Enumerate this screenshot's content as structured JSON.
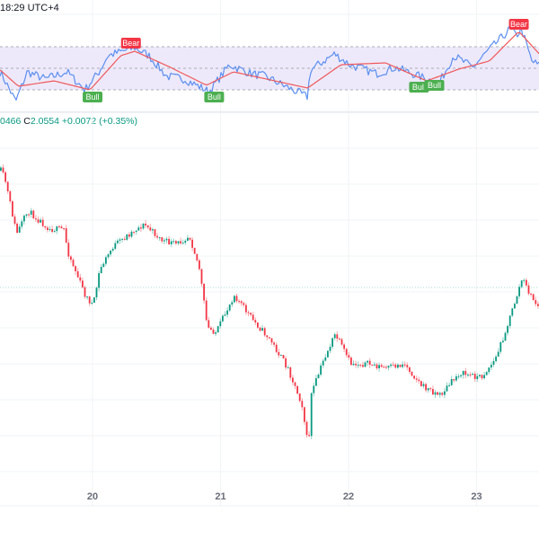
{
  "header": {
    "time_label": "18:29 UTC+4"
  },
  "legend": {
    "low_fragment": "0466",
    "close_prefix": "C",
    "close_value": "2.0554",
    "change": "+0.0072",
    "change_pct": "(+0.35%)"
  },
  "colors": {
    "up": "#089981",
    "down": "#f23645",
    "rsi": "#5b8ff0",
    "rsi_ma": "#f0585a",
    "band": "#ede9fa",
    "bull": "#4caf50",
    "bear": "#f23645"
  },
  "chart_data": [
    {
      "type": "line",
      "panel": "oscillator",
      "band": [
        30,
        70
      ],
      "middle": 50,
      "series": [
        {
          "role": "oscillator",
          "x": [
            19.28,
            19.4,
            19.49,
            19.63,
            19.8,
            19.94,
            20.05,
            20.12,
            20.33,
            20.44,
            20.58,
            20.72,
            20.91,
            21.07,
            21.24,
            21.35,
            21.49,
            21.68,
            21.7,
            21.89,
            22.01,
            22.22,
            22.36,
            22.5,
            22.61,
            22.71,
            22.82,
            22.97,
            23.08,
            23.21,
            23.26,
            23.31,
            23.35,
            23.43,
            23.49
          ],
          "y": [
            46.7,
            19.2,
            46.7,
            40,
            46.7,
            30,
            46.7,
            61.7,
            69.2,
            61.7,
            42.5,
            40,
            28.3,
            53.3,
            45,
            42.5,
            34.2,
            23.3,
            48.3,
            63.3,
            53.3,
            45,
            50.8,
            45,
            40,
            36.7,
            61.7,
            50.8,
            65,
            80,
            86.7,
            80,
            86.7,
            56.7,
            52.5
          ]
        },
        {
          "role": "moving-average",
          "x": [
            19.28,
            19.42,
            19.7,
            19.98,
            20.22,
            20.33,
            20.61,
            20.89,
            21.1,
            21.52,
            21.68,
            21.94,
            22.29,
            22.61,
            22.86,
            23.1,
            23.33,
            23.49
          ],
          "y": [
            48.3,
            33.3,
            38.3,
            30,
            61.7,
            65.8,
            50.8,
            34.2,
            46.7,
            35.8,
            31.7,
            53.3,
            55,
            38.3,
            49.2,
            56.7,
            84.2,
            63.3
          ]
        }
      ],
      "annotations": [
        {
          "text": "Bear",
          "x": 20.3,
          "kind": "bear"
        },
        {
          "text": "Bull",
          "x": 20.0,
          "kind": "bull"
        },
        {
          "text": "Bull",
          "x": 20.95,
          "kind": "bull"
        },
        {
          "text": "Bull",
          "x": 22.55,
          "kind": "bull"
        },
        {
          "text": "Bull",
          "x": 22.67,
          "kind": "bull"
        },
        {
          "text": "Bear",
          "x": 23.33,
          "kind": "bear"
        }
      ]
    },
    {
      "type": "candlestick",
      "panel": "price",
      "x_ticks": [
        "20",
        "21",
        "22",
        "23"
      ],
      "x_tick_values": [
        20,
        21,
        22,
        23
      ],
      "last_price": 2.0554,
      "close_path": {
        "x": [
          19.28,
          19.31,
          19.4,
          19.49,
          19.66,
          19.77,
          19.8,
          19.94,
          20.0,
          20.05,
          20.15,
          20.33,
          20.4,
          20.54,
          20.65,
          20.75,
          20.79,
          20.83,
          20.89,
          20.96,
          21.1,
          21.24,
          21.38,
          21.52,
          21.63,
          21.68,
          21.7,
          21.8,
          21.89,
          22.01,
          22.15,
          22.29,
          22.43,
          22.57,
          22.71,
          22.86,
          23.03,
          23.14,
          23.24,
          23.35,
          23.42,
          23.49
        ],
        "y": [
          2.0864,
          2.0844,
          2.0724,
          2.0774,
          2.0734,
          2.0734,
          2.0684,
          2.0584,
          2.0564,
          2.0644,
          2.0694,
          2.0734,
          2.0744,
          2.0708,
          2.07,
          2.072,
          2.0684,
          2.0644,
          2.0514,
          2.0504,
          2.0588,
          2.0534,
          2.0488,
          2.0424,
          2.0344,
          2.0244,
          2.0364,
          2.0444,
          2.05,
          2.0434,
          2.0434,
          2.0424,
          2.0434,
          2.0384,
          2.0364,
          2.0414,
          2.0404,
          2.0444,
          2.0524,
          2.0624,
          2.0584,
          2.0554
        ]
      }
    }
  ]
}
